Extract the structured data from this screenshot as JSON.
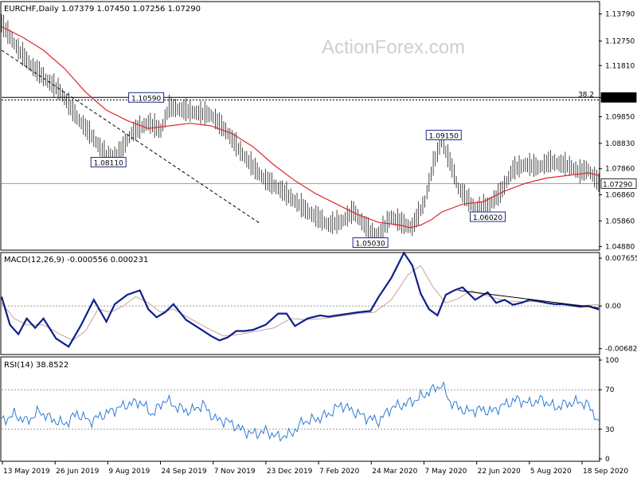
{
  "chart_data": [
    {
      "type": "line",
      "title": "EURCHF,Daily  1.07379 1.07450 1.07256 1.07290",
      "watermark": "ActionForex.com",
      "y_ticks": [
        "1.13790",
        "1.12750",
        "1.11810",
        "1.10590",
        "1.09850",
        "1.08830",
        "1.07860",
        "1.06860",
        "1.05860",
        "1.04880"
      ],
      "y_tick_values": [
        1.1379,
        1.1275,
        1.1181,
        1.1059,
        1.0985,
        1.0883,
        1.0786,
        1.0686,
        1.0586,
        1.0488
      ],
      "ylim": [
        1.048,
        1.142
      ],
      "x_ticks": [
        "13 May 2019",
        "26 Jun 2019",
        "9 Aug 2019",
        "24 Sep 2019",
        "7 Nov 2019",
        "23 Dec 2019",
        "7 Feb 2020",
        "24 Mar 2020",
        "7 May 2020",
        "22 Jun 2020",
        "5 Aug 2020",
        "18 Sep 2020"
      ],
      "horizontal_lines": [
        {
          "label": "1.10590",
          "value": 1.1059,
          "color": "#000000",
          "style": "solid"
        },
        {
          "label": "38.2",
          "value": 1.1049,
          "color": "#000000",
          "style": "dotted"
        },
        {
          "label": "1.07290",
          "value": 1.0729,
          "color": "#999999",
          "style": "solid"
        }
      ],
      "trendline": {
        "x": [
          0,
          123
        ],
        "y": [
          1.124,
          1.0578
        ]
      },
      "price_labels": [
        {
          "text": "1.10590",
          "x": 69,
          "y": 1.1059
        },
        {
          "text": "1.08110",
          "x": 51,
          "y": 1.0811
        },
        {
          "text": "1.05030",
          "x": 176,
          "y": 1.0503
        },
        {
          "text": "1.09150",
          "x": 211,
          "y": 1.0915
        },
        {
          "text": "1.06020",
          "x": 232,
          "y": 1.0602
        }
      ],
      "price": {
        "x": [
          0,
          8,
          14,
          22,
          28,
          36,
          44,
          50,
          56,
          62,
          70,
          76,
          80,
          86,
          92,
          100,
          108,
          114,
          120,
          126,
          132,
          140,
          146,
          150,
          156,
          162,
          168,
          172,
          176,
          180,
          186,
          192,
          196,
          202,
          206,
          210,
          214,
          218,
          222,
          226,
          232,
          238,
          244,
          250,
          256,
          262,
          268,
          272,
          276,
          280,
          285
        ],
        "y": [
          1.134,
          1.124,
          1.118,
          1.112,
          1.108,
          1.098,
          1.09,
          1.083,
          1.084,
          1.092,
          1.096,
          1.093,
          1.102,
          1.101,
          1.1,
          1.099,
          1.092,
          1.085,
          1.079,
          1.074,
          1.071,
          1.066,
          1.062,
          1.06,
          1.057,
          1.058,
          1.062,
          1.058,
          1.054,
          1.053,
          1.06,
          1.057,
          1.056,
          1.066,
          1.08,
          1.089,
          1.081,
          1.071,
          1.067,
          1.063,
          1.064,
          1.069,
          1.078,
          1.08,
          1.079,
          1.081,
          1.08,
          1.079,
          1.077,
          1.078,
          1.0729
        ]
      },
      "ma": {
        "x": [
          0,
          10,
          20,
          30,
          40,
          50,
          60,
          70,
          80,
          90,
          100,
          110,
          120,
          130,
          140,
          150,
          160,
          170,
          180,
          190,
          195,
          200,
          205,
          210,
          220,
          230,
          240,
          250,
          260,
          270,
          280,
          285
        ],
        "y": [
          1.133,
          1.129,
          1.124,
          1.117,
          1.108,
          1.101,
          1.097,
          1.094,
          1.095,
          1.096,
          1.095,
          1.092,
          1.087,
          1.08,
          1.074,
          1.069,
          1.065,
          1.061,
          1.058,
          1.057,
          1.056,
          1.057,
          1.059,
          1.062,
          1.065,
          1.066,
          1.07,
          1.073,
          1.075,
          1.076,
          1.077,
          1.076
        ]
      }
    },
    {
      "type": "line",
      "title": "MACD(12,26,9) -0.000556 0.000231",
      "y_ticks": [
        "0.007655",
        "0.00",
        "-0.006822"
      ],
      "y_tick_values": [
        0.007655,
        0.0,
        -0.006822
      ],
      "ylim": [
        -0.0075,
        0.0083
      ],
      "series": [
        {
          "values_x": [
            0,
            4,
            8,
            12,
            16,
            20,
            26,
            32,
            38,
            44,
            50,
            54,
            60,
            66,
            70,
            74,
            78,
            82,
            88,
            94,
            100,
            104,
            108,
            112,
            116,
            120,
            126,
            132,
            136,
            140,
            146,
            152,
            156,
            160,
            166,
            170,
            176,
            180,
            186,
            192,
            196,
            200,
            204,
            208,
            212,
            216,
            220,
            226,
            232,
            236,
            240,
            244,
            248,
            252,
            256,
            260,
            264,
            268,
            272,
            276,
            280,
            285
          ],
          "values": [
            0.0015,
            -0.003,
            -0.0045,
            -0.002,
            -0.0035,
            -0.002,
            -0.0052,
            -0.0065,
            -0.003,
            0.001,
            -0.0025,
            0.0003,
            0.0018,
            0.0025,
            -0.0005,
            -0.0018,
            -0.001,
            0.0003,
            -0.0022,
            -0.0035,
            -0.0048,
            -0.0055,
            -0.005,
            -0.004,
            -0.004,
            -0.0038,
            -0.003,
            -0.0012,
            -0.0012,
            -0.0032,
            -0.002,
            -0.0015,
            -0.0017,
            -0.0015,
            -0.0012,
            -0.001,
            -0.0008,
            0.0015,
            0.0045,
            0.0085,
            0.0065,
            0.002,
            -0.0005,
            -0.0015,
            0.0018,
            0.0025,
            0.003,
            0.001,
            0.0022,
            0.0005,
            0.001,
            0.0002,
            0.0005,
            0.001,
            0.0008,
            0.0005,
            0.0003,
            0.0003,
            0.0001,
            -0.0001,
            0.0,
            -0.000556
          ]
        },
        {
          "values_x": [
            0,
            6,
            12,
            20,
            28,
            34,
            40,
            46,
            52,
            58,
            64,
            70,
            76,
            82,
            90,
            98,
            106,
            114,
            122,
            130,
            138,
            146,
            154,
            162,
            170,
            178,
            186,
            194,
            200,
            206,
            212,
            218,
            224,
            230,
            236,
            242,
            248,
            254,
            260,
            266,
            272,
            278,
            285
          ],
          "values": [
            0.0005,
            -0.002,
            -0.003,
            -0.003,
            -0.0045,
            -0.0055,
            -0.004,
            -0.0005,
            -0.001,
            0.0,
            0.0015,
            0.0005,
            -0.001,
            -0.0005,
            -0.002,
            -0.0035,
            -0.0048,
            -0.0045,
            -0.004,
            -0.0035,
            -0.002,
            -0.0022,
            -0.002,
            -0.0016,
            -0.0012,
            -0.001,
            0.001,
            0.005,
            0.0065,
            0.003,
            0.0005,
            0.0012,
            0.0025,
            0.0018,
            0.0012,
            0.0008,
            0.0007,
            0.0007,
            0.0005,
            0.0003,
            0.0002,
            0.0001,
            0.000231
          ]
        }
      ],
      "trendline": {
        "x": [
          218,
          285
        ],
        "y": [
          0.0025,
          -0.0003
        ]
      }
    },
    {
      "type": "line",
      "title": "RSI(14) 38.8522",
      "y_ticks": [
        "100",
        "70",
        "30",
        "0"
      ],
      "y_tick_values": [
        100,
        70,
        30,
        0
      ],
      "ylim": [
        0,
        100
      ],
      "levels": [
        70,
        30
      ],
      "values_x": [
        0,
        6,
        12,
        18,
        24,
        30,
        36,
        42,
        48,
        54,
        60,
        66,
        72,
        78,
        84,
        90,
        96,
        102,
        108,
        114,
        120,
        126,
        132,
        138,
        144,
        150,
        156,
        162,
        168,
        174,
        180,
        186,
        192,
        198,
        204,
        210,
        214,
        218,
        222,
        228,
        234,
        240,
        246,
        252,
        258,
        264,
        270,
        276,
        280,
        285
      ],
      "values": [
        38,
        45,
        38,
        48,
        40,
        35,
        46,
        38,
        44,
        50,
        55,
        58,
        45,
        60,
        52,
        48,
        55,
        40,
        38,
        30,
        25,
        28,
        22,
        25,
        38,
        40,
        45,
        55,
        48,
        42,
        38,
        52,
        55,
        60,
        68,
        75,
        58,
        52,
        48,
        50,
        48,
        55,
        60,
        56,
        60,
        52,
        56,
        58,
        54,
        38.8522
      ]
    }
  ]
}
